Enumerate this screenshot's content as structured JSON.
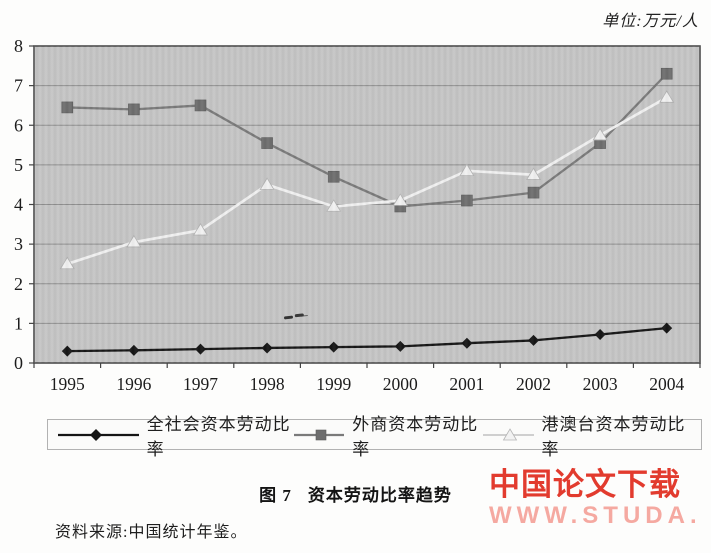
{
  "unit_label": "单位:万元/人",
  "chart_data": {
    "type": "line",
    "title": "图 7 资本劳动比率趋势",
    "categories": [
      "1995",
      "1996",
      "1997",
      "1998",
      "1999",
      "2000",
      "2001",
      "2002",
      "2003",
      "2004"
    ],
    "xlabel": "",
    "ylabel": "",
    "ylim": [
      0,
      8
    ],
    "yticks": [
      0,
      1,
      2,
      3,
      4,
      5,
      6,
      7,
      8
    ],
    "grid": "horizontal",
    "legend_position": "bottom",
    "plot_bg_color": "#c6c6c6",
    "grid_color": "#8f8f8f",
    "series": [
      {
        "name": "全社会资本劳动比率",
        "marker": "diamond",
        "color": "#151515",
        "line_color": "#151515",
        "values": [
          0.3,
          0.32,
          0.35,
          0.38,
          0.4,
          0.42,
          0.5,
          0.57,
          0.72,
          0.88
        ]
      },
      {
        "name": "外商资本劳动比率",
        "marker": "square",
        "color": "#6e6e6e",
        "line_color": "#7a7a7a",
        "values": [
          6.45,
          6.4,
          6.5,
          5.55,
          4.7,
          3.95,
          4.1,
          4.3,
          5.55,
          7.3
        ]
      },
      {
        "name": "港澳台资本劳动比率",
        "marker": "triangle",
        "color": "#f2f2f2",
        "line_color": "#f2f2f2",
        "values": [
          2.5,
          3.05,
          3.35,
          4.5,
          3.95,
          4.1,
          4.85,
          4.75,
          5.75,
          6.7
        ]
      }
    ]
  },
  "caption": {
    "prefix": "图 7",
    "title": "资本劳动比率趋势"
  },
  "source": "资料来源:中国统计年鉴。",
  "watermark": {
    "line1": "中国论文下载",
    "line2": "WWW.STUDA.",
    "color1": "#e23b2e",
    "color2": "#f5a9a1"
  }
}
